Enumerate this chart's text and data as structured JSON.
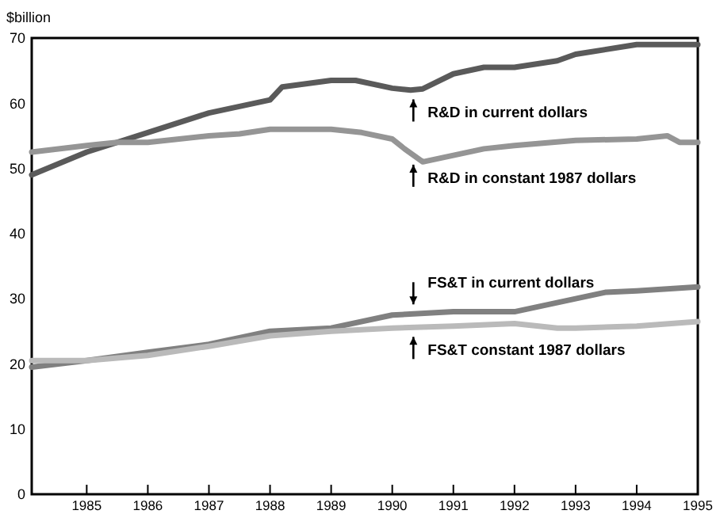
{
  "chart_data": {
    "type": "line",
    "ylabel": "$billion",
    "xlim": [
      1984.1,
      1995
    ],
    "xticks": [
      1985,
      1986,
      1987,
      1988,
      1989,
      1990,
      1991,
      1992,
      1993,
      1994,
      1995
    ],
    "ylim": [
      0,
      70
    ],
    "yticks": [
      0,
      10,
      20,
      30,
      40,
      50,
      60,
      70
    ],
    "grid": false,
    "legend": false,
    "marker": "none",
    "line_style": "solid",
    "series": [
      {
        "name": "R&D in current dollars",
        "color": "#5a5a5a",
        "x": [
          1984.1,
          1985,
          1986,
          1987,
          1987.5,
          1988,
          1988.2,
          1989,
          1989.4,
          1990,
          1990.3,
          1990.5,
          1991,
          1991.5,
          1992,
          1992.7,
          1993,
          1994,
          1995
        ],
        "values": [
          49,
          52.5,
          55.5,
          58.5,
          59.5,
          60.5,
          62.5,
          63.5,
          63.5,
          62.3,
          62,
          62.2,
          64.5,
          65.5,
          65.5,
          66.5,
          67.5,
          69,
          69
        ]
      },
      {
        "name": "R&D in constant 1987 dollars",
        "color": "#959595",
        "x": [
          1984.1,
          1985,
          1985.5,
          1986,
          1987,
          1987.5,
          1988,
          1989,
          1989.5,
          1990,
          1990.2,
          1990.5,
          1991,
          1991.5,
          1992,
          1993,
          1994,
          1994.5,
          1994.7,
          1995
        ],
        "values": [
          52.5,
          53.5,
          54,
          54,
          55,
          55.3,
          56,
          56,
          55.5,
          54.5,
          53,
          51,
          52,
          53,
          53.5,
          54.3,
          54.5,
          55,
          54,
          54
        ]
      },
      {
        "name": "FS&T in current dollars",
        "color": "#808080",
        "x": [
          1984.1,
          1985,
          1986,
          1987,
          1988,
          1989,
          1990,
          1991,
          1992,
          1993,
          1993.5,
          1994,
          1995
        ],
        "values": [
          19.5,
          20.5,
          21.8,
          23,
          25,
          25.5,
          27.5,
          28,
          28,
          30,
          31,
          31.2,
          31.8
        ]
      },
      {
        "name": "FS&T constant 1987 dollars",
        "color": "#bababa",
        "x": [
          1984.1,
          1985,
          1986,
          1987,
          1988,
          1989,
          1990,
          1991,
          1992,
          1992.7,
          1993,
          1994,
          1995
        ],
        "values": [
          20.5,
          20.5,
          21.3,
          22.7,
          24.3,
          25,
          25.5,
          25.8,
          26.2,
          25.5,
          25.5,
          25.8,
          26.5
        ]
      }
    ]
  }
}
